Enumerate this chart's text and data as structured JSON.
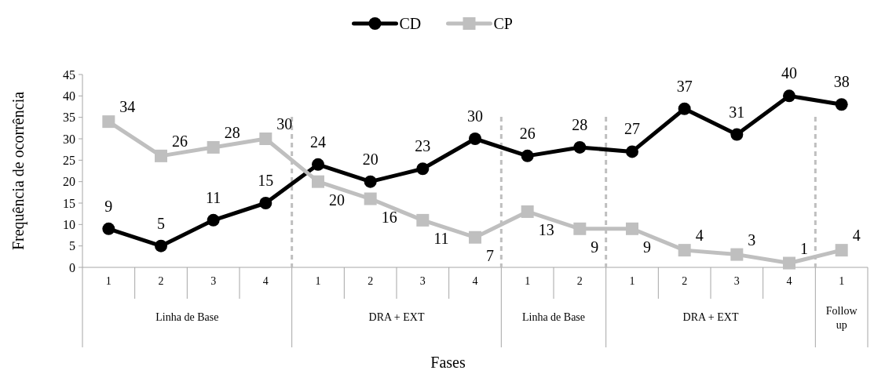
{
  "chart_data": {
    "type": "line",
    "xlabel": "Fases",
    "ylabel": "Frequência de ocorrência",
    "categories": [
      "1",
      "2",
      "3",
      "4",
      "1",
      "2",
      "3",
      "4",
      "1",
      "2",
      "1",
      "2",
      "3",
      "4",
      "1"
    ],
    "series": [
      {
        "name": "CD",
        "color": "#000000",
        "marker": "circle",
        "values": [
          9,
          5,
          11,
          15,
          24,
          20,
          23,
          30,
          26,
          28,
          27,
          37,
          31,
          40,
          38
        ]
      },
      {
        "name": "CP",
        "color": "#bfbfbf",
        "marker": "square",
        "values": [
          34,
          26,
          28,
          30,
          20,
          16,
          11,
          7,
          13,
          9,
          9,
          4,
          3,
          1,
          4
        ]
      }
    ],
    "ylim": [
      0,
      45
    ],
    "yticks": [
      0,
      5,
      10,
      15,
      20,
      25,
      30,
      35,
      40,
      45
    ],
    "grid": false,
    "legend": "top",
    "data_labels": true,
    "annotations": [
      "Linha de Base",
      "DRA + EXT",
      "Linha de Base",
      "DRA + EXT",
      "Follow up"
    ]
  }
}
